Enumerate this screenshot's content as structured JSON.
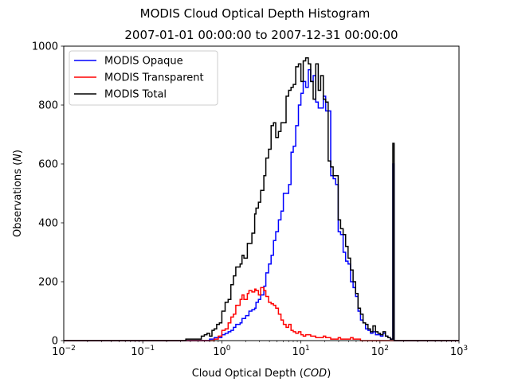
{
  "chart_data": {
    "type": "histogram-step",
    "title": "MODIS Cloud Optical Depth Histogram",
    "subtitle": "2007-01-01 00:00:00 to 2007-12-31 00:00:00",
    "xlabel": "Cloud Optical Depth (COD)",
    "ylabel": "Observations (N)",
    "x_scale": "log",
    "xlim": [
      0.01,
      1000
    ],
    "ylim": [
      0,
      1000
    ],
    "x_ticks": [
      {
        "value": 0.01,
        "base": "10",
        "exp": "−2"
      },
      {
        "value": 0.1,
        "base": "10",
        "exp": "−1"
      },
      {
        "value": 1,
        "base": "10",
        "exp": "0"
      },
      {
        "value": 10,
        "base": "10",
        "exp": "1"
      },
      {
        "value": 100,
        "base": "10",
        "exp": "2"
      },
      {
        "value": 1000,
        "base": "10",
        "exp": "3"
      }
    ],
    "y_ticks": [
      0,
      200,
      400,
      600,
      800,
      1000
    ],
    "grid": false,
    "legend_position": "top-left",
    "series": [
      {
        "name": "MODIS Opaque",
        "color": "#0000ff",
        "points": [
          [
            0.4,
            0
          ],
          [
            0.7,
            5
          ],
          [
            0.8,
            10
          ],
          [
            0.9,
            10
          ],
          [
            1.0,
            20
          ],
          [
            1.1,
            25
          ],
          [
            1.2,
            30
          ],
          [
            1.3,
            35
          ],
          [
            1.4,
            45
          ],
          [
            1.5,
            55
          ],
          [
            1.7,
            60
          ],
          [
            1.8,
            75
          ],
          [
            1.9,
            75
          ],
          [
            2.0,
            85
          ],
          [
            2.2,
            100
          ],
          [
            2.4,
            105
          ],
          [
            2.6,
            110
          ],
          [
            2.7,
            130
          ],
          [
            2.9,
            140
          ],
          [
            3.1,
            155
          ],
          [
            3.4,
            185
          ],
          [
            3.6,
            230
          ],
          [
            3.9,
            260
          ],
          [
            4.2,
            290
          ],
          [
            4.5,
            340
          ],
          [
            4.8,
            370
          ],
          [
            5.2,
            410
          ],
          [
            5.6,
            440
          ],
          [
            6.0,
            500
          ],
          [
            6.5,
            500
          ],
          [
            7.0,
            530
          ],
          [
            7.5,
            640
          ],
          [
            8.0,
            660
          ],
          [
            8.6,
            730
          ],
          [
            9.3,
            800
          ],
          [
            10.0,
            840
          ],
          [
            10.7,
            880
          ],
          [
            11.5,
            860
          ],
          [
            12.4,
            920
          ],
          [
            13.3,
            880
          ],
          [
            14.3,
            900
          ],
          [
            15.4,
            810
          ],
          [
            16.6,
            790
          ],
          [
            17.8,
            790
          ],
          [
            19.2,
            830
          ],
          [
            20.6,
            780
          ],
          [
            22.1,
            780
          ],
          [
            23.8,
            560
          ],
          [
            25.6,
            550
          ],
          [
            27.5,
            530
          ],
          [
            29.6,
            370
          ],
          [
            31.8,
            360
          ],
          [
            34.2,
            300
          ],
          [
            36.8,
            270
          ],
          [
            39.5,
            260
          ],
          [
            42.5,
            200
          ],
          [
            45.7,
            180
          ],
          [
            49.1,
            150
          ],
          [
            52.8,
            100
          ],
          [
            56.8,
            70
          ],
          [
            61.1,
            60
          ],
          [
            65.7,
            40
          ],
          [
            70.6,
            35
          ],
          [
            75.9,
            25
          ],
          [
            81.6,
            30
          ],
          [
            87.8,
            20
          ],
          [
            94.4,
            20
          ],
          [
            101.5,
            15
          ],
          [
            109.1,
            25
          ],
          [
            117.3,
            15
          ],
          [
            126.1,
            10
          ],
          [
            135.6,
            5
          ],
          [
            145.8,
            600
          ],
          [
            151,
            0
          ]
        ]
      },
      {
        "name": "MODIS Transparent",
        "color": "#ff0000",
        "points": [
          [
            0.5,
            0
          ],
          [
            0.8,
            5
          ],
          [
            0.9,
            15
          ],
          [
            1.0,
            35
          ],
          [
            1.1,
            40
          ],
          [
            1.2,
            60
          ],
          [
            1.3,
            80
          ],
          [
            1.4,
            90
          ],
          [
            1.5,
            120
          ],
          [
            1.7,
            140
          ],
          [
            1.8,
            155
          ],
          [
            1.9,
            140
          ],
          [
            2.1,
            160
          ],
          [
            2.2,
            170
          ],
          [
            2.4,
            165
          ],
          [
            2.6,
            175
          ],
          [
            2.7,
            170
          ],
          [
            2.9,
            155
          ],
          [
            3.1,
            180
          ],
          [
            3.4,
            170
          ],
          [
            3.6,
            150
          ],
          [
            3.9,
            130
          ],
          [
            4.2,
            125
          ],
          [
            4.5,
            120
          ],
          [
            4.8,
            110
          ],
          [
            5.2,
            90
          ],
          [
            5.6,
            70
          ],
          [
            6.0,
            55
          ],
          [
            6.5,
            45
          ],
          [
            7.0,
            55
          ],
          [
            7.5,
            35
          ],
          [
            8.0,
            30
          ],
          [
            8.6,
            25
          ],
          [
            9.3,
            30
          ],
          [
            10.0,
            20
          ],
          [
            10.7,
            15
          ],
          [
            11.5,
            20
          ],
          [
            13.3,
            15
          ],
          [
            15.4,
            10
          ],
          [
            19.2,
            15
          ],
          [
            20.6,
            10
          ],
          [
            23.8,
            5
          ],
          [
            29.6,
            10
          ],
          [
            31.8,
            5
          ],
          [
            42.5,
            10
          ],
          [
            45.7,
            5
          ],
          [
            56.8,
            0
          ],
          [
            151,
            0
          ]
        ]
      },
      {
        "name": "MODIS Total",
        "color": "#000000",
        "points": [
          [
            0.35,
            5
          ],
          [
            0.5,
            5
          ],
          [
            0.55,
            15
          ],
          [
            0.6,
            20
          ],
          [
            0.65,
            25
          ],
          [
            0.7,
            15
          ],
          [
            0.75,
            35
          ],
          [
            0.8,
            40
          ],
          [
            0.86,
            55
          ],
          [
            0.93,
            60
          ],
          [
            1.0,
            100
          ],
          [
            1.1,
            130
          ],
          [
            1.2,
            140
          ],
          [
            1.3,
            190
          ],
          [
            1.4,
            220
          ],
          [
            1.5,
            250
          ],
          [
            1.7,
            260
          ],
          [
            1.8,
            290
          ],
          [
            1.9,
            280
          ],
          [
            2.1,
            330
          ],
          [
            2.2,
            330
          ],
          [
            2.4,
            365
          ],
          [
            2.6,
            430
          ],
          [
            2.7,
            450
          ],
          [
            2.9,
            470
          ],
          [
            3.1,
            510
          ],
          [
            3.4,
            560
          ],
          [
            3.6,
            620
          ],
          [
            3.9,
            650
          ],
          [
            4.2,
            730
          ],
          [
            4.5,
            740
          ],
          [
            4.8,
            690
          ],
          [
            5.2,
            710
          ],
          [
            5.6,
            740
          ],
          [
            6.0,
            740
          ],
          [
            6.5,
            830
          ],
          [
            7.0,
            850
          ],
          [
            7.5,
            860
          ],
          [
            8.0,
            870
          ],
          [
            8.6,
            930
          ],
          [
            9.3,
            940
          ],
          [
            10.0,
            880
          ],
          [
            10.7,
            950
          ],
          [
            11.5,
            960
          ],
          [
            12.4,
            940
          ],
          [
            13.3,
            880
          ],
          [
            14.3,
            820
          ],
          [
            15.4,
            940
          ],
          [
            16.6,
            850
          ],
          [
            17.8,
            900
          ],
          [
            19.2,
            820
          ],
          [
            20.6,
            810
          ],
          [
            22.1,
            610
          ],
          [
            23.8,
            590
          ],
          [
            25.6,
            560
          ],
          [
            27.5,
            560
          ],
          [
            29.6,
            410
          ],
          [
            31.8,
            380
          ],
          [
            34.2,
            360
          ],
          [
            36.8,
            320
          ],
          [
            39.5,
            280
          ],
          [
            42.5,
            240
          ],
          [
            45.7,
            200
          ],
          [
            49.1,
            160
          ],
          [
            52.8,
            110
          ],
          [
            56.8,
            90
          ],
          [
            61.1,
            60
          ],
          [
            65.7,
            55
          ],
          [
            70.6,
            40
          ],
          [
            75.9,
            30
          ],
          [
            81.6,
            50
          ],
          [
            87.8,
            30
          ],
          [
            94.4,
            25
          ],
          [
            101.5,
            20
          ],
          [
            109.1,
            30
          ],
          [
            117.3,
            15
          ],
          [
            126.1,
            10
          ],
          [
            135.6,
            5
          ],
          [
            145.8,
            670
          ],
          [
            151,
            0
          ]
        ]
      }
    ]
  }
}
